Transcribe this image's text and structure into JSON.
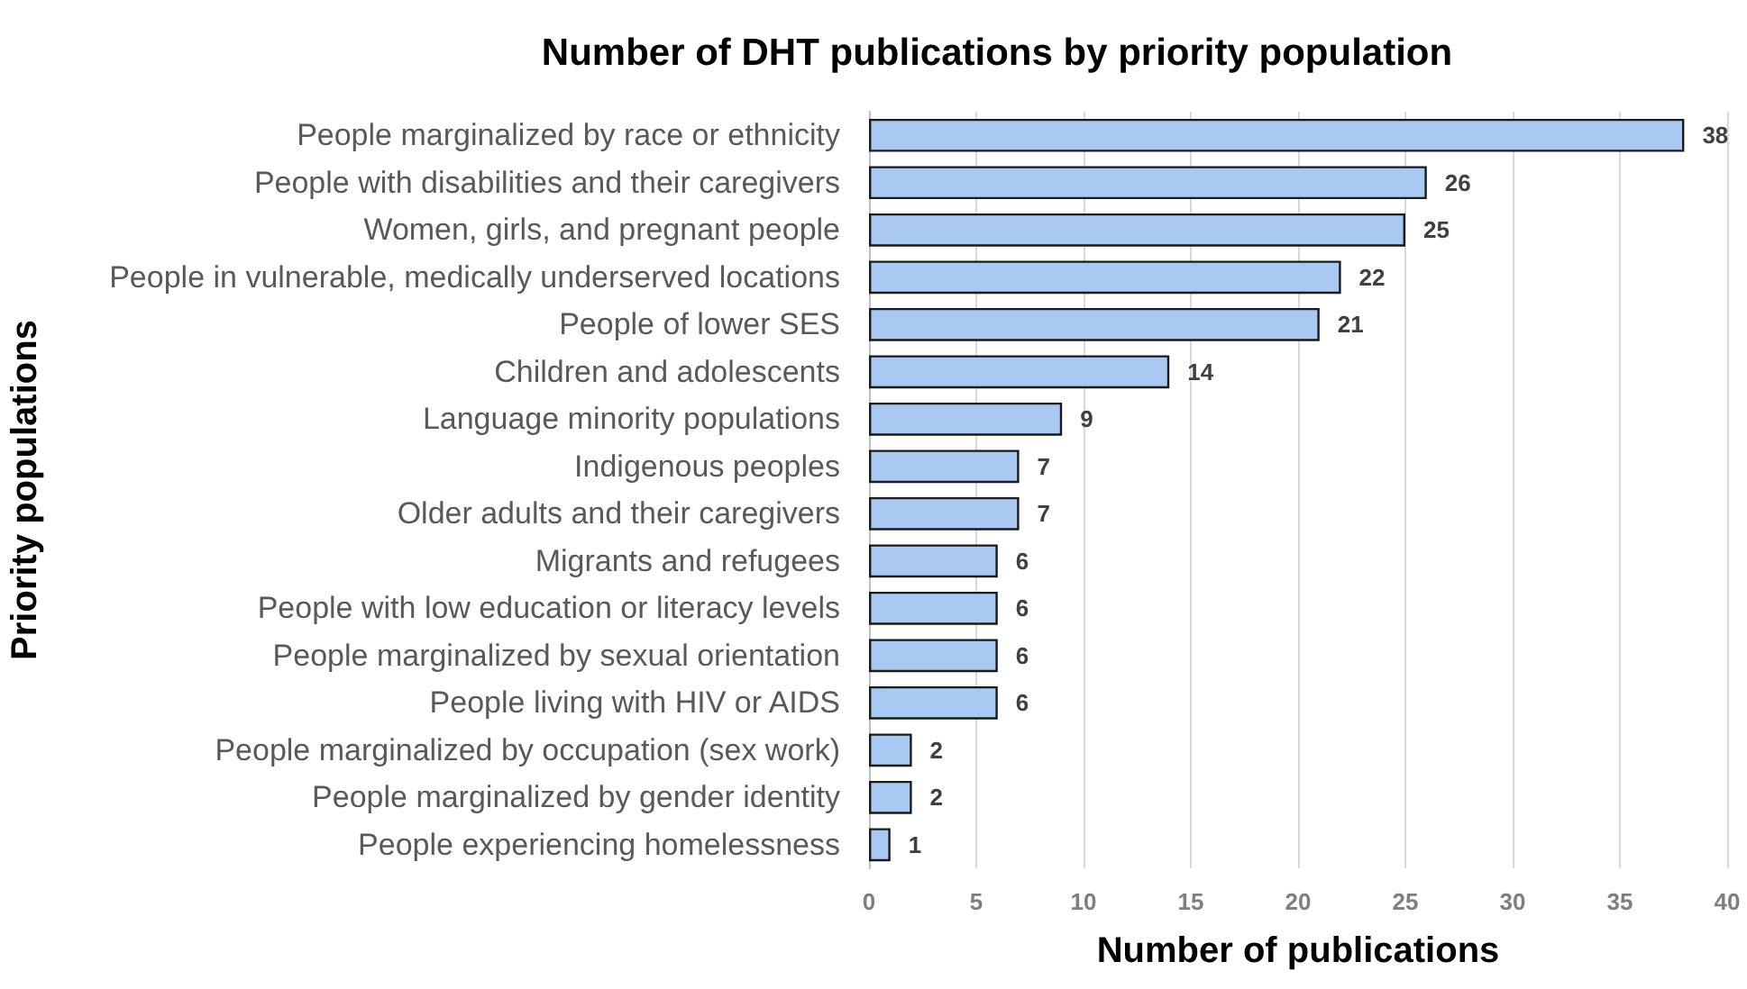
{
  "chart_data": {
    "type": "bar",
    "orientation": "horizontal",
    "title": "Number of DHT publications by priority population",
    "xlabel": "Number of publications",
    "ylabel": "Priority populations",
    "categories": [
      "People marginalized by race or ethnicity",
      "People with disabilities and their caregivers",
      "Women, girls, and pregnant people",
      "People in vulnerable, medically underserved locations",
      "People of lower SES",
      "Children and adolescents",
      "Language minority populations",
      "Indigenous peoples",
      "Older adults and their caregivers",
      "Migrants and refugees",
      "People with low education or literacy levels",
      "People marginalized by sexual orientation",
      "People living with HIV or AIDS",
      "People marginalized by occupation (sex work)",
      "People marginalized by gender identity",
      "People experiencing homelessness"
    ],
    "values": [
      38,
      26,
      25,
      22,
      21,
      14,
      9,
      7,
      7,
      6,
      6,
      6,
      6,
      2,
      2,
      1
    ],
    "color": "#a9c9f2",
    "xlim": [
      0,
      40
    ],
    "xticks": [
      0,
      5,
      10,
      15,
      20,
      25,
      30,
      35,
      40
    ],
    "grid": "x",
    "data_labels": true
  }
}
